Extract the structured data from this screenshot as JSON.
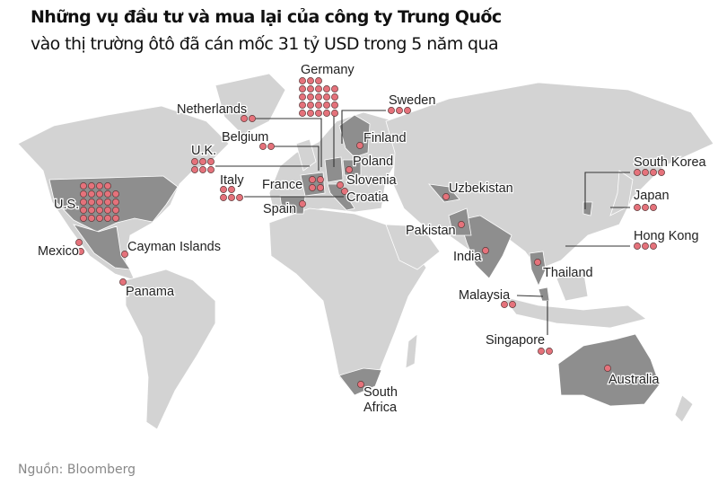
{
  "title": "Những vụ đầu tư và mua lại của công ty Trung Quốc",
  "subtitle": "vào thị trường ôtô đã cán mốc 31 tỷ USD trong 5 năm qua",
  "source": "Nguồn: Bloomberg",
  "colors": {
    "land": "#d3d3d3",
    "highlight": "#8e8e8e",
    "dot": "#e5727b",
    "dot_outline": "#5a3a3a",
    "leader": "#333333"
  },
  "countries": [
    {
      "name": "Germany",
      "deals": 23
    },
    {
      "name": "Netherlands",
      "deals": 2
    },
    {
      "name": "Belgium",
      "deals": 2
    },
    {
      "name": "U.K.",
      "deals": 6
    },
    {
      "name": "Italy",
      "deals": 5
    },
    {
      "name": "France",
      "deals": 4
    },
    {
      "name": "Spain",
      "deals": 1
    },
    {
      "name": "Sweden",
      "deals": 3
    },
    {
      "name": "Finland",
      "deals": 1
    },
    {
      "name": "Poland",
      "deals": 1
    },
    {
      "name": "Slovenia",
      "deals": 1
    },
    {
      "name": "Croatia",
      "deals": 1
    },
    {
      "name": "Uzbekistan",
      "deals": 1
    },
    {
      "name": "Pakistan",
      "deals": 1
    },
    {
      "name": "India",
      "deals": 1
    },
    {
      "name": "Thailand",
      "deals": 1
    },
    {
      "name": "Malaysia",
      "deals": 2
    },
    {
      "name": "Singapore",
      "deals": 2
    },
    {
      "name": "South Korea",
      "deals": 4
    },
    {
      "name": "Japan",
      "deals": 3
    },
    {
      "name": "Hong Kong",
      "deals": 3
    },
    {
      "name": "Australia",
      "deals": 1
    },
    {
      "name": "South Africa",
      "deals": 1
    },
    {
      "name": "U.S.",
      "deals": 24
    },
    {
      "name": "Mexico",
      "deals": 2
    },
    {
      "name": "Cayman Islands",
      "deals": 1
    },
    {
      "name": "Panama",
      "deals": 1
    }
  ]
}
